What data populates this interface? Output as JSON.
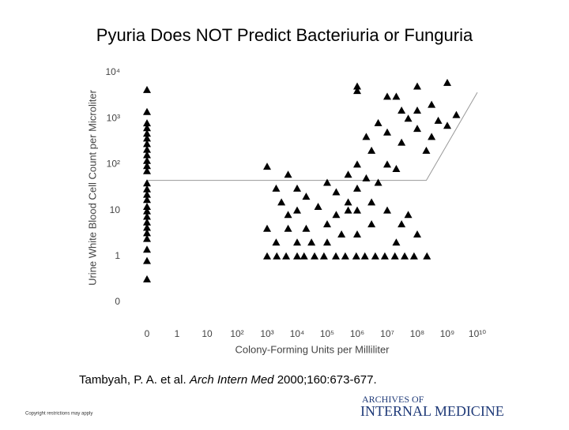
{
  "chart_data": {
    "type": "scatter",
    "title": "Pyuria Does NOT Predict Bacteriuria or Funguria",
    "xlabel": "Colony-Forming Units per Milliliter",
    "ylabel": "Urine White Blood Cell Count per Microliter",
    "xscale": "log-with-zero",
    "yscale": "log-with-zero",
    "xlim": [
      0,
      10000000000
    ],
    "ylim": [
      0,
      10000
    ],
    "xticks": [
      0,
      1,
      10,
      {
        "value": 100,
        "label": "10²"
      },
      {
        "value": 1000,
        "label": "10³"
      },
      {
        "value": 10000,
        "label": "10⁴"
      },
      {
        "value": 100000,
        "label": "10⁵"
      },
      {
        "value": 1000000,
        "label": "10⁶"
      },
      {
        "value": 10000000,
        "label": "10⁷"
      },
      {
        "value": 100000000,
        "label": "10⁸"
      },
      {
        "value": 1000000000,
        "label": "10⁹"
      },
      {
        "value": 10000000000,
        "label": "10¹⁰"
      }
    ],
    "yticks": [
      0,
      1,
      10,
      {
        "value": 100,
        "label": "10²"
      },
      {
        "value": 1000,
        "label": "10³"
      },
      {
        "value": 10000,
        "label": "10⁴"
      }
    ],
    "series": [
      {
        "color": "#000000",
        "x": [
          0,
          0,
          0,
          0,
          0,
          0,
          0,
          0,
          0,
          0,
          0,
          0,
          0,
          0,
          0,
          0,
          0,
          0,
          0,
          0,
          0,
          0,
          0,
          0,
          0,
          0,
          1000,
          2000,
          5000,
          10000,
          20000,
          10000,
          3000,
          5000,
          100000,
          200000,
          500000,
          1000000,
          1000000,
          2000000,
          3000000,
          5000000,
          10000000,
          10000000,
          20000000,
          30000000,
          50000000,
          100000000,
          200000000,
          300000000,
          500000000,
          1000000000,
          2000000000,
          1000000,
          100000000,
          1000000000,
          20000000,
          30000000,
          10000000,
          5000000,
          2000000,
          1000000,
          300000000,
          100000000,
          1000000,
          100000,
          300000,
          20000,
          5000,
          1000,
          2000,
          10000,
          100000,
          500000,
          1000000,
          3000000,
          10000000,
          30000000,
          100000000,
          20000000,
          50000000,
          3000000,
          500000,
          200000,
          50000,
          30000,
          1000,
          2100,
          4300,
          10000,
          17000,
          38000,
          78000,
          195000,
          400000,
          930000,
          1800000,
          4000000,
          8300000,
          18000000,
          38000000,
          78000000,
          210000000
        ],
        "y": [
          4200,
          1400,
          790,
          620,
          470,
          370,
          280,
          210,
          160,
          120,
          93,
          72,
          39,
          29,
          22,
          17,
          12,
          9.6,
          7.3,
          5.5,
          4.2,
          3.2,
          2.4,
          1.4,
          0.9,
          0.5,
          90,
          30,
          60,
          30,
          20,
          10,
          15,
          8,
          40,
          25,
          60,
          100,
          30,
          50,
          200,
          40,
          100,
          500,
          80,
          300,
          1000,
          600,
          200,
          400,
          900,
          700,
          1200,
          4000,
          5000,
          6000,
          3000,
          1500,
          3000,
          800,
          400,
          5000,
          2000,
          1500,
          10,
          5,
          3,
          4,
          4,
          4,
          2,
          2,
          2,
          10,
          3,
          5,
          10,
          5,
          3,
          2,
          8,
          15,
          15,
          8,
          12,
          2,
          1,
          1,
          1,
          1,
          1,
          1,
          1,
          1,
          1,
          1,
          1,
          1,
          1,
          1,
          1,
          1,
          1
        ]
      }
    ],
    "reference_line": {
      "x": [
        0,
        200000000,
        10000000000
      ],
      "y": [
        45,
        45,
        3700
      ],
      "color": "#999999"
    },
    "citation": {
      "authors": "Tambyah, P. A. et al. ",
      "journal": "Arch Intern Med",
      "details": " 2000;160:673-677."
    },
    "copyright": "Copyright restrictions may apply",
    "logo": {
      "line1": "ARCHIVES OF",
      "line2": "INTERNAL MEDICINE"
    }
  }
}
